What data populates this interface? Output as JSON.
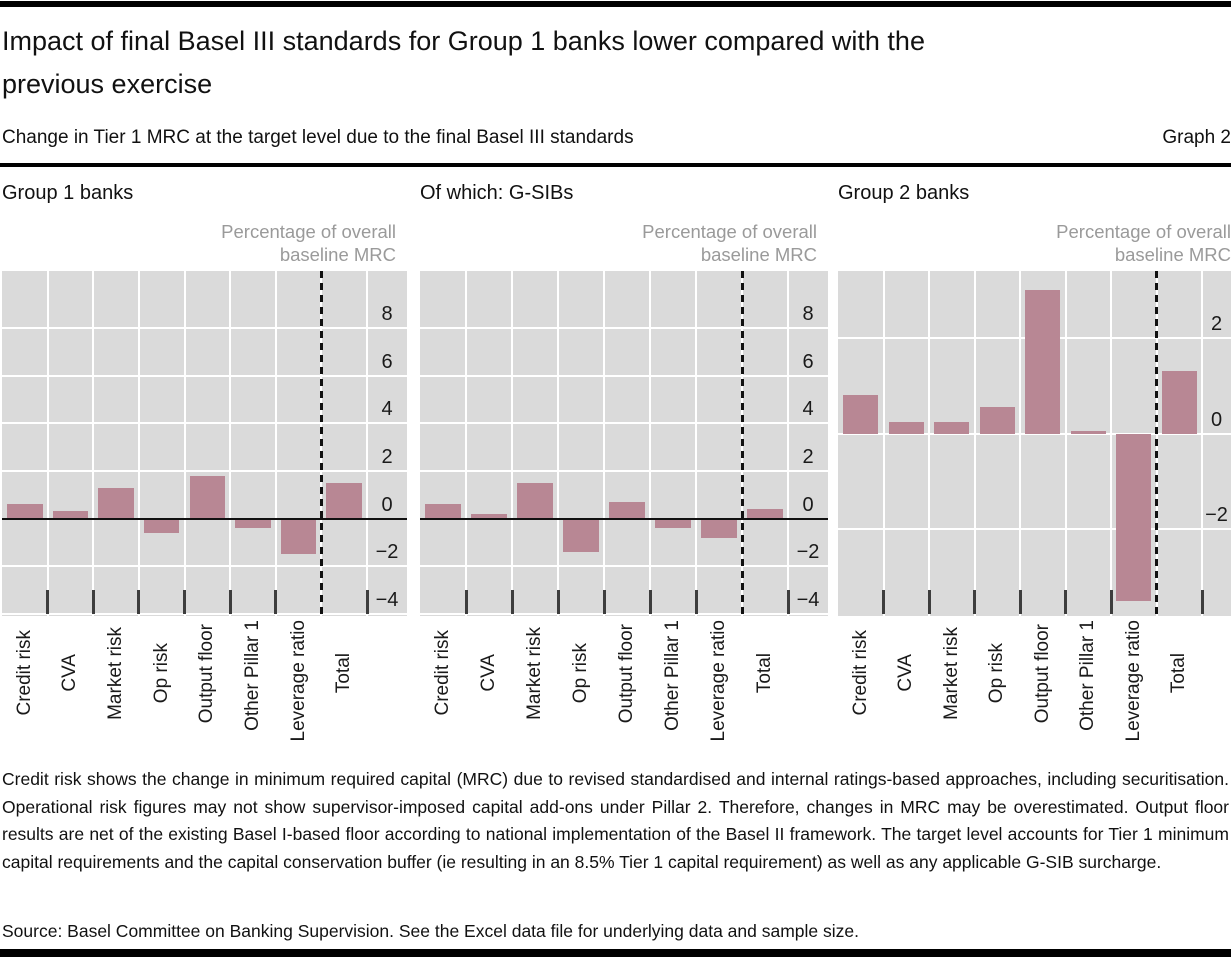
{
  "document": {
    "title_lines": [
      "Impact of final Basel III standards for Group 1 banks lower compared with the",
      "previous exercise"
    ],
    "subtitle": "Change in Tier 1 MRC at the target level due to the final Basel III standards",
    "graph_label": "Graph 2",
    "footnote": "Credit risk shows the change in minimum required capital (MRC) due to revised standardised and internal ratings-based approaches, including securitisation. Operational risk figures may not show supervisor-imposed capital add-ons under Pillar 2. Therefore, changes in MRC may be overestimated. Output floor results are net of the existing Basel I-based floor according to national implementation of the Basel II framework. The target level accounts for Tier 1 minimum capital requirements and the capital conservation buffer (ie resulting in an 8.5% Tier 1 capital requirement) as well as any applicable G-SIB surcharge.",
    "source": "Source: Basel Committee on Banking Supervision. See the Excel data file for underlying data and sample size."
  },
  "colors": {
    "bar_fill": "#b88794",
    "plot_background": "#dadada",
    "gridline": "#ffffff",
    "zero_line": "#111111",
    "dashed_line": "#111111",
    "tick_mark": "#3d3d3d",
    "unit_label_text": "#9a9a9a",
    "axis_text": "#1a1a1a",
    "rule": "#000000"
  },
  "chart_data": [
    {
      "type": "bar",
      "title": "Group 1 banks",
      "unit_label": [
        "Percentage of overall",
        "baseline MRC"
      ],
      "categories": [
        "Credit risk",
        "CVA",
        "Market risk",
        "Op risk",
        "Output floor",
        "Other Pillar 1",
        "Leverage ratio",
        "Total"
      ],
      "values": [
        0.6,
        0.3,
        1.3,
        -0.6,
        1.8,
        -0.4,
        -1.5,
        1.5
      ],
      "yticks": [
        8,
        6,
        4,
        2,
        0,
        -2,
        -4
      ],
      "ylim": [
        -4.08,
        10.38
      ],
      "grid": true,
      "legend": "none",
      "zero_line_black": true,
      "dashed_separator_before_category": "Total",
      "xlabel": "",
      "ylabel": "Percentage of overall baseline MRC"
    },
    {
      "type": "bar",
      "title": "Of which: G-SIBs",
      "unit_label": [
        "Percentage of overall",
        "baseline MRC"
      ],
      "categories": [
        "Credit risk",
        "CVA",
        "Market risk",
        "Op risk",
        "Output floor",
        "Other Pillar 1",
        "Leverage ratio",
        "Total"
      ],
      "values": [
        0.6,
        0.2,
        1.5,
        -1.4,
        0.7,
        -0.4,
        -0.8,
        0.4
      ],
      "yticks": [
        8,
        6,
        4,
        2,
        0,
        -2,
        -4
      ],
      "ylim": [
        -4.08,
        10.38
      ],
      "grid": true,
      "legend": "none",
      "zero_line_black": true,
      "dashed_separator_before_category": "Total",
      "xlabel": "",
      "ylabel": "Percentage of overall baseline MRC"
    },
    {
      "type": "bar",
      "title": "Group 2 banks",
      "unit_label": [
        "Percentage of overall",
        "baseline MRC"
      ],
      "categories": [
        "Credit risk",
        "CVA",
        "Market risk",
        "Op risk",
        "Output floor",
        "Other Pillar 1",
        "Leverage ratio",
        "Total"
      ],
      "values": [
        0.8,
        0.25,
        0.25,
        0.55,
        3.0,
        0.05,
        -3.5,
        1.3
      ],
      "yticks": [
        2,
        0,
        -2
      ],
      "ylim": [
        -3.81,
        3.4
      ],
      "grid": true,
      "legend": "none",
      "zero_line_black": false,
      "dashed_separator_before_category": "Total",
      "xlabel": "",
      "ylabel": "Percentage of overall baseline MRC"
    }
  ]
}
